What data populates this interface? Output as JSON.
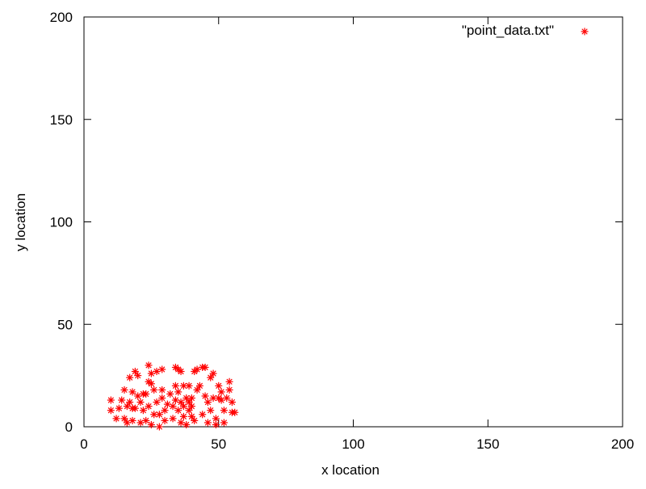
{
  "chart_data": {
    "type": "scatter",
    "title": "",
    "xlabel": "x location",
    "ylabel": "y location",
    "xlim": [
      0,
      200
    ],
    "ylim": [
      0,
      200
    ],
    "xticks": [
      0,
      50,
      100,
      150,
      200
    ],
    "yticks": [
      0,
      50,
      100,
      150,
      200
    ],
    "grid": false,
    "legend_position": "top-right",
    "marker": "asterisk",
    "series": [
      {
        "name": "\"point_data.txt\"",
        "color": "#ff0000",
        "points": [
          [
            10,
            13
          ],
          [
            10,
            8
          ],
          [
            12,
            4
          ],
          [
            13,
            9
          ],
          [
            14,
            13
          ],
          [
            15,
            4
          ],
          [
            15,
            18
          ],
          [
            16,
            2
          ],
          [
            16,
            10
          ],
          [
            17,
            12
          ],
          [
            17,
            24
          ],
          [
            18,
            3
          ],
          [
            18,
            9
          ],
          [
            18,
            17
          ],
          [
            19,
            27
          ],
          [
            19,
            9
          ],
          [
            20,
            25
          ],
          [
            20,
            15
          ],
          [
            21,
            12
          ],
          [
            21,
            2
          ],
          [
            22,
            16
          ],
          [
            22,
            8
          ],
          [
            23,
            3
          ],
          [
            23,
            16
          ],
          [
            24,
            30
          ],
          [
            24,
            22
          ],
          [
            24,
            10
          ],
          [
            25,
            21
          ],
          [
            25,
            26
          ],
          [
            25,
            1
          ],
          [
            26,
            18
          ],
          [
            26,
            6
          ],
          [
            27,
            27
          ],
          [
            27,
            12
          ],
          [
            28,
            0
          ],
          [
            28,
            6
          ],
          [
            29,
            28
          ],
          [
            29,
            14
          ],
          [
            29,
            18
          ],
          [
            30,
            8
          ],
          [
            30,
            3
          ],
          [
            31,
            11
          ],
          [
            32,
            16
          ],
          [
            33,
            10
          ],
          [
            33,
            4
          ],
          [
            34,
            29
          ],
          [
            34,
            20
          ],
          [
            34,
            13
          ],
          [
            35,
            28
          ],
          [
            35,
            17
          ],
          [
            35,
            8
          ],
          [
            36,
            2
          ],
          [
            36,
            27
          ],
          [
            36,
            12
          ],
          [
            37,
            5
          ],
          [
            37,
            20
          ],
          [
            37,
            10
          ],
          [
            38,
            14
          ],
          [
            38,
            1
          ],
          [
            39,
            8
          ],
          [
            39,
            20
          ],
          [
            39,
            12
          ],
          [
            40,
            5
          ],
          [
            40,
            10
          ],
          [
            40,
            14
          ],
          [
            41,
            27
          ],
          [
            41,
            3
          ],
          [
            42,
            28
          ],
          [
            42,
            18
          ],
          [
            43,
            20
          ],
          [
            44,
            29
          ],
          [
            44,
            6
          ],
          [
            45,
            29
          ],
          [
            45,
            15
          ],
          [
            46,
            12
          ],
          [
            46,
            2
          ],
          [
            47,
            8
          ],
          [
            47,
            24
          ],
          [
            48,
            14
          ],
          [
            48,
            26
          ],
          [
            49,
            4
          ],
          [
            49,
            1
          ],
          [
            50,
            14
          ],
          [
            50,
            20
          ],
          [
            51,
            17
          ],
          [
            51,
            13
          ],
          [
            52,
            2
          ],
          [
            52,
            8
          ],
          [
            53,
            14
          ],
          [
            54,
            22
          ],
          [
            54,
            18
          ],
          [
            55,
            12
          ],
          [
            55,
            7
          ],
          [
            56,
            7
          ]
        ]
      }
    ]
  }
}
